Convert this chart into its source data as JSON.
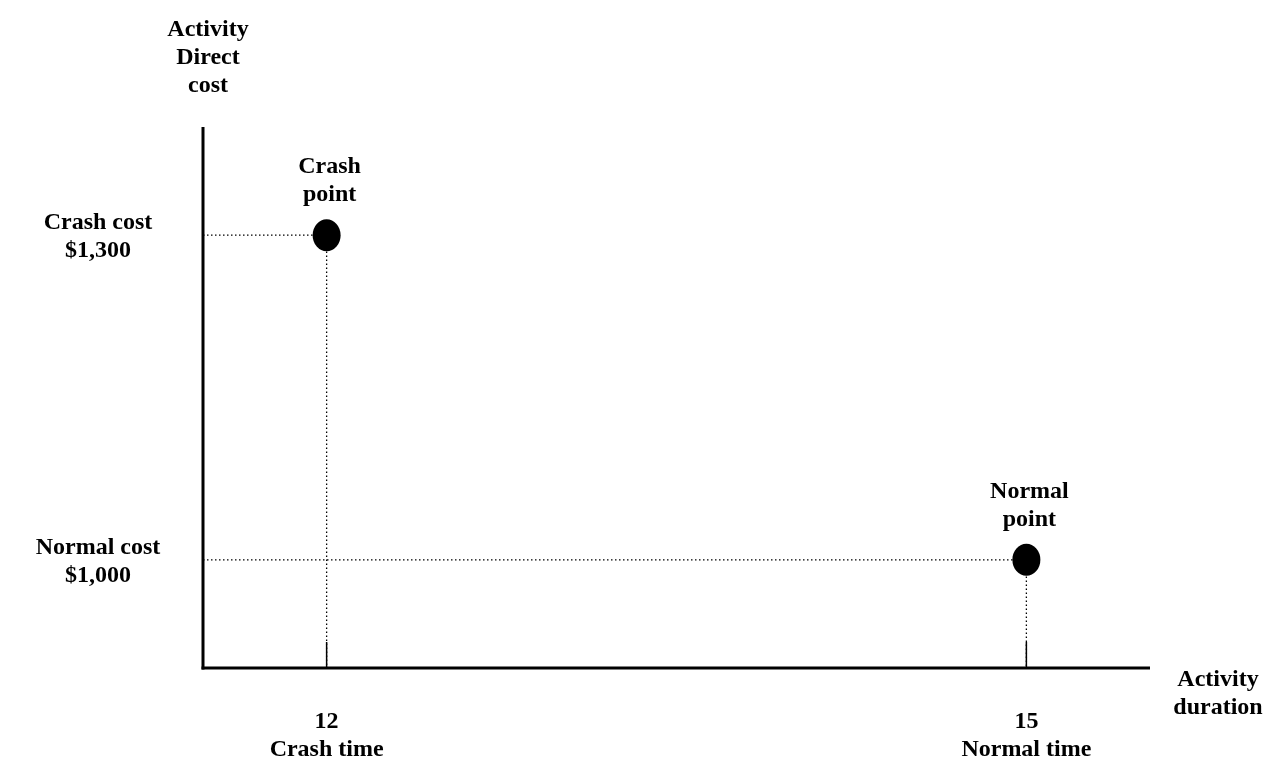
{
  "chart_data": {
    "type": "scatter",
    "xlabel": "Activity duration",
    "ylabel": "Activity Direct cost",
    "xlim": [
      11.47,
      15.53
    ],
    "ylim": [
      900,
      1400
    ],
    "xticks": [
      12,
      15
    ],
    "yticks": [
      {
        "value": 1000,
        "label": "$1,000"
      },
      {
        "value": 1300,
        "label": "$1,300"
      }
    ],
    "series": [
      {
        "type": "line",
        "color": "#000000",
        "line_style": "dotted",
        "x": [
          11.47,
          12,
          12
        ],
        "values": [
          1300,
          1300,
          900
        ]
      },
      {
        "type": "line",
        "color": "#000000",
        "line_style": "dotted",
        "x": [
          11.47,
          15,
          15
        ],
        "values": [
          1000,
          1000,
          900
        ]
      },
      {
        "color": "#000000",
        "marker": "circle",
        "x": [
          12,
          15
        ],
        "values": [
          1300,
          1000
        ]
      }
    ],
    "annotations": [
      {
        "text": "Crash\npoint",
        "x": 12,
        "y": 1300
      },
      {
        "text": "Normal\npoint",
        "x": 15,
        "y": 1000
      },
      "Crash cost",
      "Normal cost",
      "Crash time",
      "Normal time"
    ]
  }
}
